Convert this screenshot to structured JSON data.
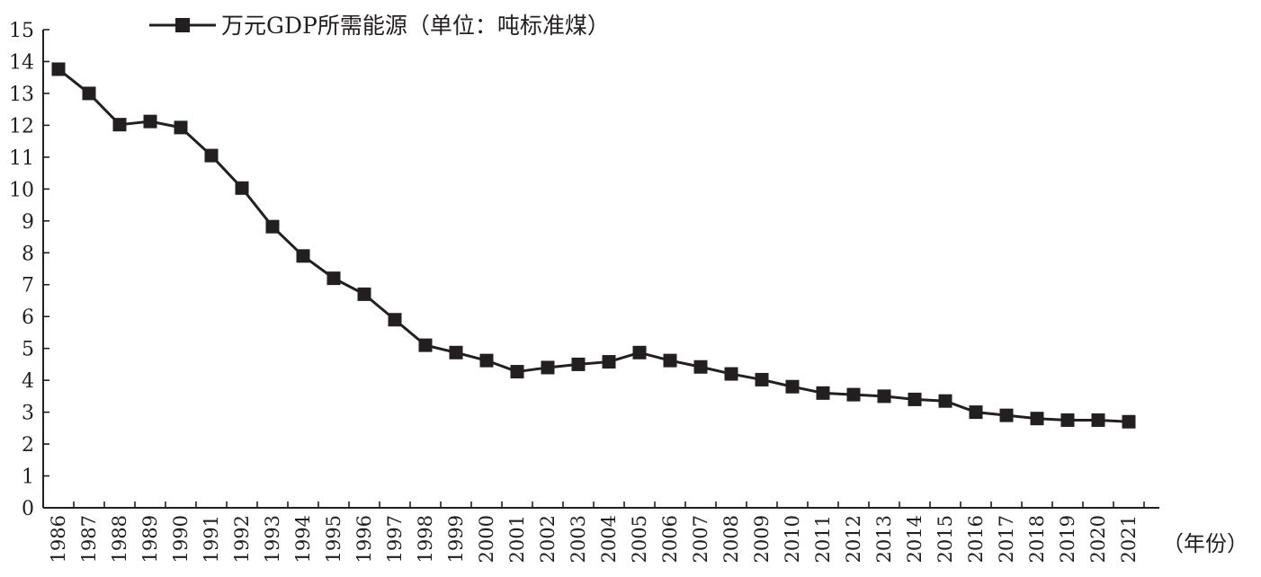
{
  "chart_data": {
    "type": "line",
    "title": "",
    "xlabel": "（年份）",
    "ylabel": "",
    "ylim": [
      0,
      15
    ],
    "y_ticks": [
      0,
      1,
      2,
      3,
      4,
      5,
      6,
      7,
      8,
      9,
      10,
      11,
      12,
      13,
      14,
      15
    ],
    "grid": false,
    "legend_position": "top-left",
    "categories": [
      "1986",
      "1987",
      "1988",
      "1989",
      "1990",
      "1991",
      "1992",
      "1993",
      "1994",
      "1995",
      "1996",
      "1997",
      "1998",
      "1999",
      "2000",
      "2001",
      "2002",
      "2003",
      "2004",
      "2005",
      "2006",
      "2007",
      "2008",
      "2009",
      "2010",
      "2011",
      "2012",
      "2013",
      "2014",
      "2015",
      "2016",
      "2017",
      "2018",
      "2019",
      "2020",
      "2021"
    ],
    "series": [
      {
        "name": "万元GDP所需能源（单位：吨标准煤）",
        "color": "#231f20",
        "marker": "square",
        "values": [
          13.76,
          13.0,
          12.02,
          12.12,
          11.93,
          11.05,
          10.03,
          8.82,
          7.9,
          7.2,
          6.7,
          5.9,
          5.1,
          4.87,
          4.62,
          4.27,
          4.4,
          4.5,
          4.58,
          4.87,
          4.62,
          4.42,
          4.2,
          4.02,
          3.8,
          3.6,
          3.55,
          3.5,
          3.4,
          3.35,
          3.0,
          2.9,
          2.8,
          2.75,
          2.75,
          2.7
        ]
      }
    ]
  }
}
